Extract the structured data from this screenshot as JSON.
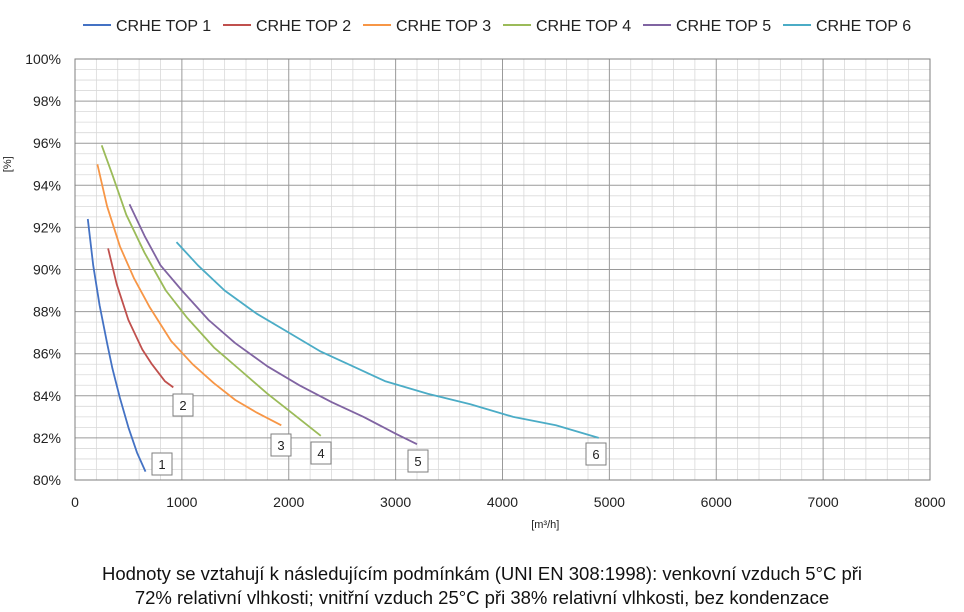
{
  "chart_data": {
    "type": "line",
    "title": "",
    "xlabel": "[m³/h]",
    "ylabel": "[%]",
    "xlim": [
      0,
      8000
    ],
    "ylim": [
      80,
      100
    ],
    "x_ticks": [
      "0",
      "1000",
      "2000",
      "3000",
      "4000",
      "5000",
      "6000",
      "7000",
      "8000"
    ],
    "y_ticks": [
      "80%",
      "82%",
      "84%",
      "86%",
      "88%",
      "90%",
      "92%",
      "94%",
      "96%",
      "98%",
      "100%"
    ],
    "grid": true,
    "legend_position": "top",
    "series": [
      {
        "name": "CRHE TOP 1",
        "color": "#4472C4",
        "label": "1",
        "x": [
          120,
          170,
          230,
          300,
          350,
          420,
          500,
          580,
          660
        ],
        "y": [
          92.4,
          90.2,
          88.3,
          86.5,
          85.3,
          83.9,
          82.5,
          81.3,
          80.4
        ]
      },
      {
        "name": "CRHE TOP 2",
        "color": "#C0504D",
        "label": "2",
        "x": [
          310,
          390,
          500,
          630,
          720,
          840,
          920
        ],
        "y": [
          91.0,
          89.3,
          87.6,
          86.2,
          85.5,
          84.7,
          84.4
        ]
      },
      {
        "name": "CRHE TOP 3",
        "color": "#F79646",
        "label": "3",
        "x": [
          210,
          300,
          420,
          550,
          700,
          900,
          1100,
          1300,
          1500,
          1700,
          1930
        ],
        "y": [
          95.0,
          93.0,
          91.1,
          89.6,
          88.2,
          86.6,
          85.5,
          84.6,
          83.8,
          83.2,
          82.6
        ]
      },
      {
        "name": "CRHE TOP 4",
        "color": "#9BBB59",
        "label": "4",
        "x": [
          250,
          350,
          480,
          650,
          850,
          1050,
          1300,
          1550,
          1800,
          2050,
          2300
        ],
        "y": [
          95.9,
          94.5,
          92.6,
          90.8,
          89.0,
          87.7,
          86.3,
          85.2,
          84.1,
          83.1,
          82.1
        ]
      },
      {
        "name": "CRHE TOP 5",
        "color": "#8064A2",
        "label": "5",
        "x": [
          510,
          650,
          800,
          1000,
          1250,
          1500,
          1800,
          2100,
          2400,
          2700,
          3000,
          3200
        ],
        "y": [
          93.1,
          91.6,
          90.2,
          89.0,
          87.6,
          86.5,
          85.4,
          84.5,
          83.7,
          83.0,
          82.2,
          81.7
        ]
      },
      {
        "name": "CRHE TOP 6",
        "color": "#4BACC6",
        "label": "6",
        "x": [
          950,
          1150,
          1400,
          1700,
          2000,
          2300,
          2600,
          2900,
          3300,
          3700,
          4100,
          4500,
          4900
        ],
        "y": [
          91.3,
          90.2,
          89.0,
          87.9,
          87.0,
          86.1,
          85.4,
          84.7,
          84.1,
          83.6,
          83.0,
          82.6,
          82.0
        ]
      }
    ]
  },
  "caption": {
    "line1": "Hodnoty se vztahují k následujícím podmínkám (UNI EN 308:1998): venkovní vzduch 5°C při",
    "line2": "72% relativní vlhkosti; vnitřní vzduch 25°C při 38% relativní vlhkosti, bez kondenzace"
  }
}
